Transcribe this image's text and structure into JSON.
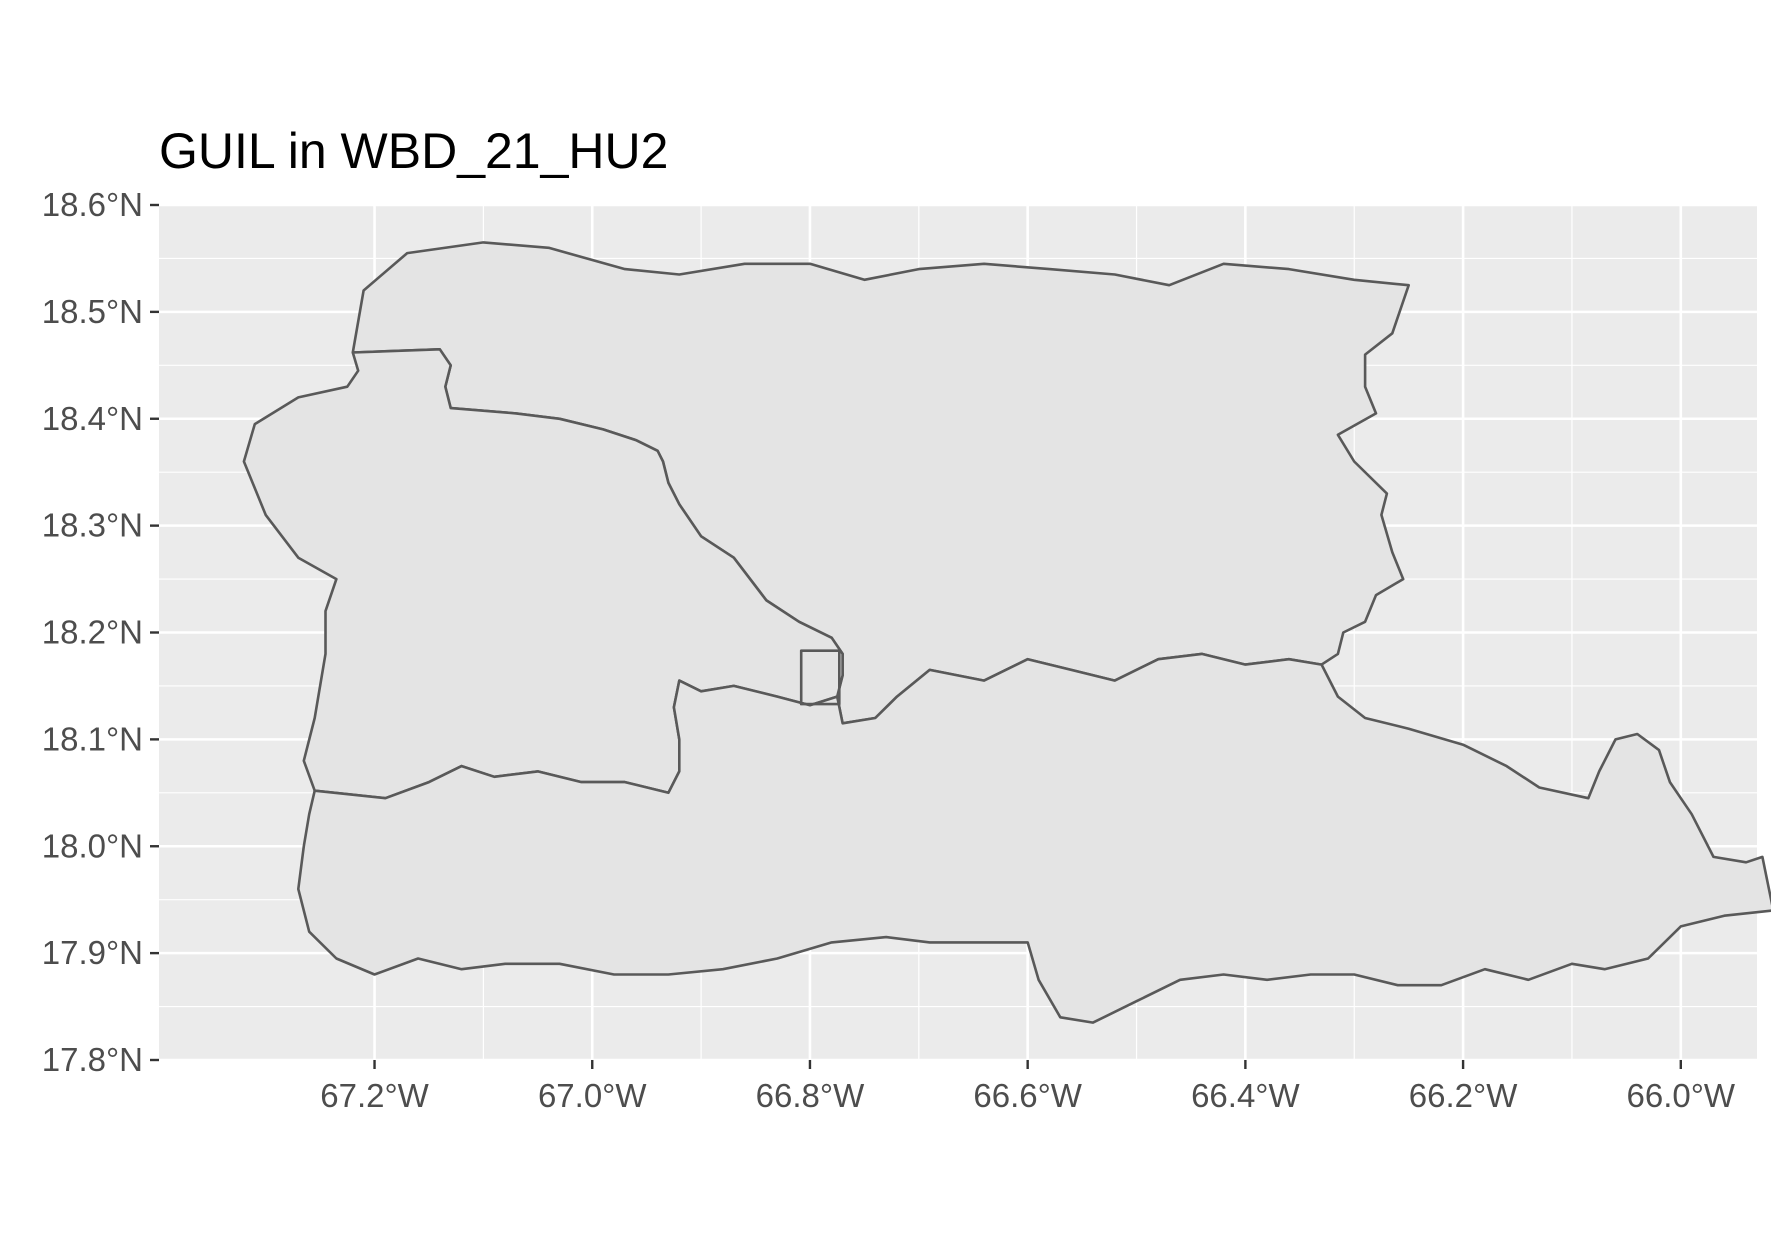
{
  "title": "GUIL in WBD_21_HU2",
  "map": {
    "x_ticks": [
      {
        "value": -67.2,
        "label": "67.2°W"
      },
      {
        "value": -67.0,
        "label": "67.0°W"
      },
      {
        "value": -66.8,
        "label": "66.8°W"
      },
      {
        "value": -66.6,
        "label": "66.6°W"
      },
      {
        "value": -66.4,
        "label": "66.4°W"
      },
      {
        "value": -66.2,
        "label": "66.2°W"
      },
      {
        "value": -66.0,
        "label": "66.0°W"
      }
    ],
    "y_ticks": [
      {
        "value": 18.6,
        "label": "18.6°N"
      },
      {
        "value": 18.5,
        "label": "18.5°N"
      },
      {
        "value": 18.4,
        "label": "18.4°N"
      },
      {
        "value": 18.3,
        "label": "18.3°N"
      },
      {
        "value": 18.2,
        "label": "18.2°N"
      },
      {
        "value": 18.1,
        "label": "18.1°N"
      },
      {
        "value": 18.0,
        "label": "18.0°N"
      },
      {
        "value": 17.9,
        "label": "17.9°N"
      },
      {
        "value": 17.8,
        "label": "17.8°N"
      }
    ],
    "xlim": [
      -67.398,
      -65.93
    ],
    "ylim": [
      17.8,
      18.6
    ],
    "colors": {
      "panel_background": "#ebebeb",
      "grid": "#ffffff",
      "polygon_fill": "#e4e4e4",
      "polygon_stroke": "#595959",
      "tick_text": "#4d4d4d"
    },
    "features": {
      "northeast_basin": [
        [
          -67.22,
          18.462
        ],
        [
          -67.21,
          18.52
        ],
        [
          -67.17,
          18.555
        ],
        [
          -67.1,
          18.565
        ],
        [
          -67.04,
          18.56
        ],
        [
          -66.97,
          18.54
        ],
        [
          -66.92,
          18.535
        ],
        [
          -66.86,
          18.545
        ],
        [
          -66.8,
          18.545
        ],
        [
          -66.75,
          18.53
        ],
        [
          -66.7,
          18.54
        ],
        [
          -66.64,
          18.545
        ],
        [
          -66.58,
          18.54
        ],
        [
          -66.52,
          18.535
        ],
        [
          -66.47,
          18.525
        ],
        [
          -66.42,
          18.545
        ],
        [
          -66.36,
          18.54
        ],
        [
          -66.3,
          18.53
        ],
        [
          -66.25,
          18.525
        ],
        [
          -66.265,
          18.48
        ],
        [
          -66.29,
          18.46
        ],
        [
          -66.29,
          18.43
        ],
        [
          -66.28,
          18.405
        ],
        [
          -66.315,
          18.385
        ],
        [
          -66.3,
          18.36
        ],
        [
          -66.27,
          18.33
        ],
        [
          -66.275,
          18.31
        ],
        [
          -66.265,
          18.275
        ],
        [
          -66.255,
          18.25
        ],
        [
          -66.28,
          18.235
        ],
        [
          -66.29,
          18.21
        ],
        [
          -66.31,
          18.2
        ],
        [
          -66.315,
          18.18
        ],
        [
          -66.33,
          18.17
        ],
        [
          -66.36,
          18.175
        ],
        [
          -66.4,
          18.17
        ],
        [
          -66.44,
          18.18
        ],
        [
          -66.48,
          18.175
        ],
        [
          -66.52,
          18.155
        ],
        [
          -66.56,
          18.165
        ],
        [
          -66.6,
          18.175
        ],
        [
          -66.64,
          18.155
        ],
        [
          -66.69,
          18.165
        ],
        [
          -66.72,
          18.14
        ],
        [
          -66.74,
          18.12
        ],
        [
          -66.77,
          18.115
        ],
        [
          -66.775,
          18.14
        ],
        [
          -66.77,
          18.16
        ],
        [
          -66.77,
          18.18
        ],
        [
          -66.78,
          18.195
        ],
        [
          -66.81,
          18.21
        ],
        [
          -66.84,
          18.23
        ],
        [
          -66.87,
          18.27
        ],
        [
          -66.9,
          18.29
        ],
        [
          -66.92,
          18.32
        ],
        [
          -66.93,
          18.34
        ],
        [
          -66.935,
          18.36
        ],
        [
          -66.94,
          18.37
        ],
        [
          -66.96,
          18.38
        ],
        [
          -66.99,
          18.39
        ],
        [
          -67.03,
          18.4
        ],
        [
          -67.07,
          18.405
        ],
        [
          -67.13,
          18.41
        ],
        [
          -67.135,
          18.43
        ],
        [
          -67.13,
          18.45
        ],
        [
          -67.14,
          18.465
        ],
        [
          -67.22,
          18.462
        ]
      ],
      "west_basin": [
        [
          -67.22,
          18.462
        ],
        [
          -67.14,
          18.465
        ],
        [
          -67.13,
          18.45
        ],
        [
          -67.135,
          18.43
        ],
        [
          -67.13,
          18.41
        ],
        [
          -67.07,
          18.405
        ],
        [
          -67.03,
          18.4
        ],
        [
          -66.99,
          18.39
        ],
        [
          -66.96,
          18.38
        ],
        [
          -66.94,
          18.37
        ],
        [
          -66.935,
          18.36
        ],
        [
          -66.93,
          18.34
        ],
        [
          -66.92,
          18.32
        ],
        [
          -66.9,
          18.29
        ],
        [
          -66.87,
          18.27
        ],
        [
          -66.84,
          18.23
        ],
        [
          -66.81,
          18.21
        ],
        [
          -66.78,
          18.195
        ],
        [
          -66.77,
          18.18
        ],
        [
          -66.77,
          18.16
        ],
        [
          -66.775,
          18.14
        ],
        [
          -66.8,
          18.132
        ],
        [
          -66.83,
          18.14
        ],
        [
          -66.87,
          18.15
        ],
        [
          -66.9,
          18.145
        ],
        [
          -66.92,
          18.155
        ],
        [
          -66.925,
          18.13
        ],
        [
          -66.92,
          18.1
        ],
        [
          -66.92,
          18.07
        ],
        [
          -66.93,
          18.05
        ],
        [
          -66.97,
          18.06
        ],
        [
          -67.01,
          18.06
        ],
        [
          -67.05,
          18.07
        ],
        [
          -67.09,
          18.065
        ],
        [
          -67.12,
          18.075
        ],
        [
          -67.15,
          18.06
        ],
        [
          -67.19,
          18.045
        ],
        [
          -67.255,
          18.052
        ],
        [
          -67.265,
          18.08
        ],
        [
          -67.255,
          18.12
        ],
        [
          -67.245,
          18.18
        ],
        [
          -67.245,
          18.22
        ],
        [
          -67.235,
          18.25
        ],
        [
          -67.27,
          18.27
        ],
        [
          -67.3,
          18.31
        ],
        [
          -67.32,
          18.36
        ],
        [
          -67.31,
          18.395
        ],
        [
          -67.27,
          18.42
        ],
        [
          -67.225,
          18.43
        ],
        [
          -67.215,
          18.445
        ],
        [
          -67.22,
          18.462
        ]
      ],
      "south_basin": [
        [
          -67.255,
          18.052
        ],
        [
          -67.19,
          18.045
        ],
        [
          -67.15,
          18.06
        ],
        [
          -67.12,
          18.075
        ],
        [
          -67.09,
          18.065
        ],
        [
          -67.05,
          18.07
        ],
        [
          -67.01,
          18.06
        ],
        [
          -66.97,
          18.06
        ],
        [
          -66.93,
          18.05
        ],
        [
          -66.92,
          18.07
        ],
        [
          -66.92,
          18.1
        ],
        [
          -66.925,
          18.13
        ],
        [
          -66.92,
          18.155
        ],
        [
          -66.9,
          18.145
        ],
        [
          -66.87,
          18.15
        ],
        [
          -66.83,
          18.14
        ],
        [
          -66.8,
          18.132
        ],
        [
          -66.775,
          18.14
        ],
        [
          -66.77,
          18.115
        ],
        [
          -66.74,
          18.12
        ],
        [
          -66.72,
          18.14
        ],
        [
          -66.69,
          18.165
        ],
        [
          -66.64,
          18.155
        ],
        [
          -66.6,
          18.175
        ],
        [
          -66.56,
          18.165
        ],
        [
          -66.52,
          18.155
        ],
        [
          -66.48,
          18.175
        ],
        [
          -66.44,
          18.18
        ],
        [
          -66.4,
          18.17
        ],
        [
          -66.36,
          18.175
        ],
        [
          -66.33,
          18.17
        ],
        [
          -66.315,
          18.14
        ],
        [
          -66.29,
          18.12
        ],
        [
          -66.25,
          18.11
        ],
        [
          -66.2,
          18.095
        ],
        [
          -66.16,
          18.075
        ],
        [
          -66.13,
          18.055
        ],
        [
          -66.085,
          18.045
        ],
        [
          -66.075,
          18.07
        ],
        [
          -66.06,
          18.1
        ],
        [
          -66.04,
          18.105
        ],
        [
          -66.02,
          18.09
        ],
        [
          -66.01,
          18.06
        ],
        [
          -65.99,
          18.03
        ],
        [
          -65.97,
          17.99
        ],
        [
          -65.94,
          17.985
        ],
        [
          -65.925,
          17.99
        ],
        [
          -65.915,
          17.94
        ],
        [
          -65.96,
          17.935
        ],
        [
          -66.0,
          17.925
        ],
        [
          -66.03,
          17.895
        ],
        [
          -66.07,
          17.885
        ],
        [
          -66.1,
          17.89
        ],
        [
          -66.14,
          17.875
        ],
        [
          -66.18,
          17.885
        ],
        [
          -66.22,
          17.87
        ],
        [
          -66.26,
          17.87
        ],
        [
          -66.3,
          17.88
        ],
        [
          -66.34,
          17.88
        ],
        [
          -66.38,
          17.875
        ],
        [
          -66.42,
          17.88
        ],
        [
          -66.46,
          17.875
        ],
        [
          -66.5,
          17.855
        ],
        [
          -66.54,
          17.835
        ],
        [
          -66.57,
          17.84
        ],
        [
          -66.59,
          17.875
        ],
        [
          -66.6,
          17.91
        ],
        [
          -66.64,
          17.91
        ],
        [
          -66.69,
          17.91
        ],
        [
          -66.73,
          17.915
        ],
        [
          -66.78,
          17.91
        ],
        [
          -66.83,
          17.895
        ],
        [
          -66.88,
          17.885
        ],
        [
          -66.93,
          17.88
        ],
        [
          -66.98,
          17.88
        ],
        [
          -67.03,
          17.89
        ],
        [
          -67.08,
          17.89
        ],
        [
          -67.12,
          17.885
        ],
        [
          -67.16,
          17.895
        ],
        [
          -67.2,
          17.88
        ],
        [
          -67.235,
          17.895
        ],
        [
          -67.26,
          17.92
        ],
        [
          -67.27,
          17.96
        ],
        [
          -67.265,
          18.0
        ],
        [
          -67.26,
          18.03
        ],
        [
          -67.255,
          18.052
        ]
      ],
      "gauge_box": [
        [
          -66.808,
          18.183
        ],
        [
          -66.773,
          18.183
        ],
        [
          -66.773,
          18.133
        ],
        [
          -66.808,
          18.133
        ],
        [
          -66.808,
          18.183
        ]
      ]
    }
  }
}
